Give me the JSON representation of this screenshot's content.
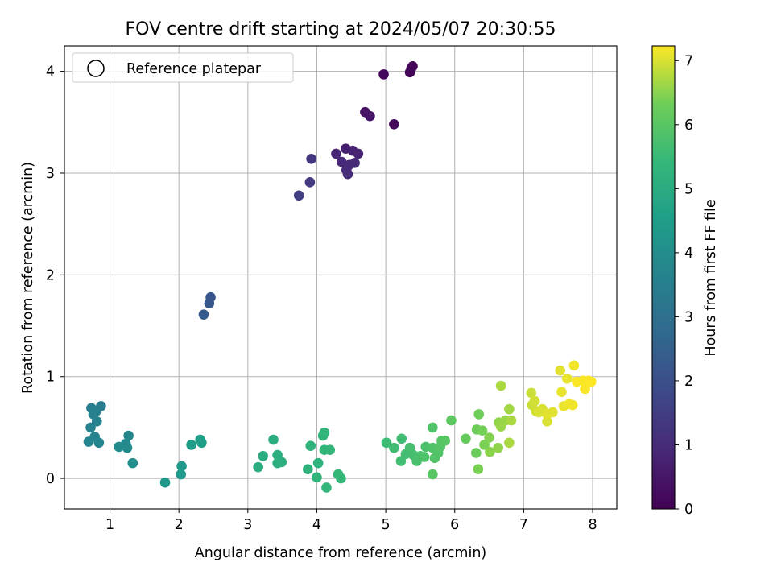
{
  "chart_data": {
    "type": "scatter",
    "title": "FOV centre drift starting at 2024/05/07 20:30:55",
    "xlabel": "Angular distance from reference (arcmin)",
    "ylabel": "Rotation from reference (arcmin)",
    "xlim": [
      0.34,
      8.35
    ],
    "ylim": [
      -0.3,
      4.25
    ],
    "xticks": [
      "1",
      "2",
      "3",
      "4",
      "5",
      "6",
      "7",
      "8"
    ],
    "yticks": [
      "0",
      "1",
      "2",
      "3",
      "4"
    ],
    "grid": true,
    "legend": {
      "location": "upper-left",
      "entries": [
        "Reference platepar"
      ],
      "marker": "open-circle"
    },
    "colorbar": {
      "label": "Hours from first FF file",
      "colormap": "viridis",
      "range": [
        0,
        7.23
      ],
      "ticks": [
        "0",
        "1",
        "2",
        "3",
        "4",
        "5",
        "6",
        "7"
      ]
    },
    "points": [
      {
        "x": 5.39,
        "y": 4.05,
        "c": 0.05
      },
      {
        "x": 5.37,
        "y": 4.03,
        "c": 0.08
      },
      {
        "x": 5.35,
        "y": 3.99,
        "c": 0.1
      },
      {
        "x": 4.97,
        "y": 3.97,
        "c": 0.15
      },
      {
        "x": 5.12,
        "y": 3.48,
        "c": 0.2
      },
      {
        "x": 4.7,
        "y": 3.6,
        "c": 0.4
      },
      {
        "x": 4.77,
        "y": 3.56,
        "c": 0.45
      },
      {
        "x": 4.42,
        "y": 3.24,
        "c": 0.7
      },
      {
        "x": 4.52,
        "y": 3.22,
        "c": 0.75
      },
      {
        "x": 4.6,
        "y": 3.19,
        "c": 0.8
      },
      {
        "x": 4.28,
        "y": 3.19,
        "c": 0.85
      },
      {
        "x": 4.36,
        "y": 3.11,
        "c": 0.9
      },
      {
        "x": 4.47,
        "y": 3.08,
        "c": 0.92
      },
      {
        "x": 4.55,
        "y": 3.1,
        "c": 0.95
      },
      {
        "x": 4.43,
        "y": 3.03,
        "c": 0.98
      },
      {
        "x": 4.45,
        "y": 2.99,
        "c": 1.0
      },
      {
        "x": 3.92,
        "y": 3.14,
        "c": 1.3
      },
      {
        "x": 3.9,
        "y": 2.91,
        "c": 1.4
      },
      {
        "x": 3.74,
        "y": 2.78,
        "c": 1.5
      },
      {
        "x": 2.46,
        "y": 1.78,
        "c": 2.2
      },
      {
        "x": 2.44,
        "y": 1.72,
        "c": 2.25
      },
      {
        "x": 2.36,
        "y": 1.61,
        "c": 2.3
      },
      {
        "x": 0.87,
        "y": 0.71,
        "c": 3.4
      },
      {
        "x": 0.73,
        "y": 0.69,
        "c": 3.45
      },
      {
        "x": 0.8,
        "y": 0.66,
        "c": 3.5
      },
      {
        "x": 0.76,
        "y": 0.63,
        "c": 3.55
      },
      {
        "x": 0.81,
        "y": 0.56,
        "c": 3.6
      },
      {
        "x": 0.72,
        "y": 0.5,
        "c": 3.6
      },
      {
        "x": 0.78,
        "y": 0.41,
        "c": 3.65
      },
      {
        "x": 0.69,
        "y": 0.36,
        "c": 3.7
      },
      {
        "x": 0.84,
        "y": 0.35,
        "c": 3.7
      },
      {
        "x": 1.27,
        "y": 0.42,
        "c": 3.8
      },
      {
        "x": 1.23,
        "y": 0.34,
        "c": 3.85
      },
      {
        "x": 1.13,
        "y": 0.31,
        "c": 3.9
      },
      {
        "x": 1.25,
        "y": 0.3,
        "c": 3.9
      },
      {
        "x": 1.33,
        "y": 0.15,
        "c": 4.0
      },
      {
        "x": 1.8,
        "y": -0.04,
        "c": 4.3
      },
      {
        "x": 2.04,
        "y": 0.12,
        "c": 4.35
      },
      {
        "x": 2.03,
        "y": 0.04,
        "c": 4.4
      },
      {
        "x": 2.18,
        "y": 0.33,
        "c": 4.5
      },
      {
        "x": 2.31,
        "y": 0.38,
        "c": 4.55
      },
      {
        "x": 2.33,
        "y": 0.35,
        "c": 4.55
      },
      {
        "x": 3.22,
        "y": 0.22,
        "c": 5.0
      },
      {
        "x": 3.15,
        "y": 0.11,
        "c": 5.05
      },
      {
        "x": 3.37,
        "y": 0.38,
        "c": 5.05
      },
      {
        "x": 3.43,
        "y": 0.23,
        "c": 5.1
      },
      {
        "x": 3.43,
        "y": 0.15,
        "c": 5.1
      },
      {
        "x": 3.49,
        "y": 0.16,
        "c": 5.1
      },
      {
        "x": 3.91,
        "y": 0.32,
        "c": 5.25
      },
      {
        "x": 4.02,
        "y": 0.15,
        "c": 5.25
      },
      {
        "x": 3.87,
        "y": 0.09,
        "c": 5.25
      },
      {
        "x": 4.0,
        "y": 0.01,
        "c": 5.3
      },
      {
        "x": 4.09,
        "y": 0.42,
        "c": 5.3
      },
      {
        "x": 4.11,
        "y": 0.45,
        "c": 5.3
      },
      {
        "x": 4.11,
        "y": 0.28,
        "c": 5.35
      },
      {
        "x": 4.19,
        "y": 0.28,
        "c": 5.35
      },
      {
        "x": 4.14,
        "y": -0.09,
        "c": 5.35
      },
      {
        "x": 4.31,
        "y": 0.04,
        "c": 5.4
      },
      {
        "x": 4.35,
        "y": 0.0,
        "c": 5.4
      },
      {
        "x": 5.01,
        "y": 0.35,
        "c": 5.55
      },
      {
        "x": 5.12,
        "y": 0.3,
        "c": 5.6
      },
      {
        "x": 5.23,
        "y": 0.39,
        "c": 5.6
      },
      {
        "x": 5.22,
        "y": 0.17,
        "c": 5.65
      },
      {
        "x": 5.29,
        "y": 0.24,
        "c": 5.65
      },
      {
        "x": 5.35,
        "y": 0.3,
        "c": 5.7
      },
      {
        "x": 5.4,
        "y": 0.23,
        "c": 5.7
      },
      {
        "x": 5.45,
        "y": 0.17,
        "c": 5.75
      },
      {
        "x": 5.5,
        "y": 0.22,
        "c": 5.75
      },
      {
        "x": 5.56,
        "y": 0.21,
        "c": 5.8
      },
      {
        "x": 5.58,
        "y": 0.31,
        "c": 5.8
      },
      {
        "x": 5.68,
        "y": 0.3,
        "c": 5.85
      },
      {
        "x": 5.68,
        "y": 0.5,
        "c": 5.85
      },
      {
        "x": 5.71,
        "y": 0.2,
        "c": 5.9
      },
      {
        "x": 5.76,
        "y": 0.25,
        "c": 5.9
      },
      {
        "x": 5.79,
        "y": 0.31,
        "c": 5.95
      },
      {
        "x": 5.81,
        "y": 0.37,
        "c": 5.95
      },
      {
        "x": 5.86,
        "y": 0.37,
        "c": 6.0
      },
      {
        "x": 5.68,
        "y": 0.04,
        "c": 6.0
      },
      {
        "x": 5.95,
        "y": 0.57,
        "c": 6.05
      },
      {
        "x": 6.16,
        "y": 0.39,
        "c": 6.2
      },
      {
        "x": 6.31,
        "y": 0.25,
        "c": 6.25
      },
      {
        "x": 6.35,
        "y": 0.63,
        "c": 6.3
      },
      {
        "x": 6.32,
        "y": 0.48,
        "c": 6.3
      },
      {
        "x": 6.4,
        "y": 0.47,
        "c": 6.35
      },
      {
        "x": 6.43,
        "y": 0.33,
        "c": 6.4
      },
      {
        "x": 6.34,
        "y": 0.09,
        "c": 6.4
      },
      {
        "x": 6.5,
        "y": 0.4,
        "c": 6.45
      },
      {
        "x": 6.51,
        "y": 0.26,
        "c": 6.5
      },
      {
        "x": 6.63,
        "y": 0.3,
        "c": 6.55
      },
      {
        "x": 6.64,
        "y": 0.55,
        "c": 6.55
      },
      {
        "x": 6.67,
        "y": 0.51,
        "c": 6.6
      },
      {
        "x": 6.74,
        "y": 0.57,
        "c": 6.6
      },
      {
        "x": 6.79,
        "y": 0.68,
        "c": 6.65
      },
      {
        "x": 6.82,
        "y": 0.57,
        "c": 6.7
      },
      {
        "x": 6.79,
        "y": 0.35,
        "c": 6.7
      },
      {
        "x": 6.67,
        "y": 0.91,
        "c": 6.7
      },
      {
        "x": 7.11,
        "y": 0.84,
        "c": 6.9
      },
      {
        "x": 7.12,
        "y": 0.72,
        "c": 6.9
      },
      {
        "x": 7.16,
        "y": 0.76,
        "c": 6.95
      },
      {
        "x": 7.18,
        "y": 0.66,
        "c": 6.95
      },
      {
        "x": 7.22,
        "y": 0.65,
        "c": 7.0
      },
      {
        "x": 7.27,
        "y": 0.68,
        "c": 7.0
      },
      {
        "x": 7.34,
        "y": 0.56,
        "c": 7.0
      },
      {
        "x": 7.34,
        "y": 0.63,
        "c": 7.05
      },
      {
        "x": 7.42,
        "y": 0.65,
        "c": 7.05
      },
      {
        "x": 7.53,
        "y": 1.06,
        "c": 7.05
      },
      {
        "x": 7.55,
        "y": 0.85,
        "c": 7.1
      },
      {
        "x": 7.58,
        "y": 0.71,
        "c": 7.1
      },
      {
        "x": 7.63,
        "y": 0.98,
        "c": 7.1
      },
      {
        "x": 7.66,
        "y": 0.73,
        "c": 7.15
      },
      {
        "x": 7.71,
        "y": 0.72,
        "c": 7.15
      },
      {
        "x": 7.73,
        "y": 1.11,
        "c": 7.15
      },
      {
        "x": 7.77,
        "y": 0.95,
        "c": 7.2
      },
      {
        "x": 7.86,
        "y": 0.96,
        "c": 7.2
      },
      {
        "x": 7.89,
        "y": 0.88,
        "c": 7.2
      },
      {
        "x": 7.94,
        "y": 0.96,
        "c": 7.22
      },
      {
        "x": 7.98,
        "y": 0.95,
        "c": 7.22
      }
    ]
  }
}
